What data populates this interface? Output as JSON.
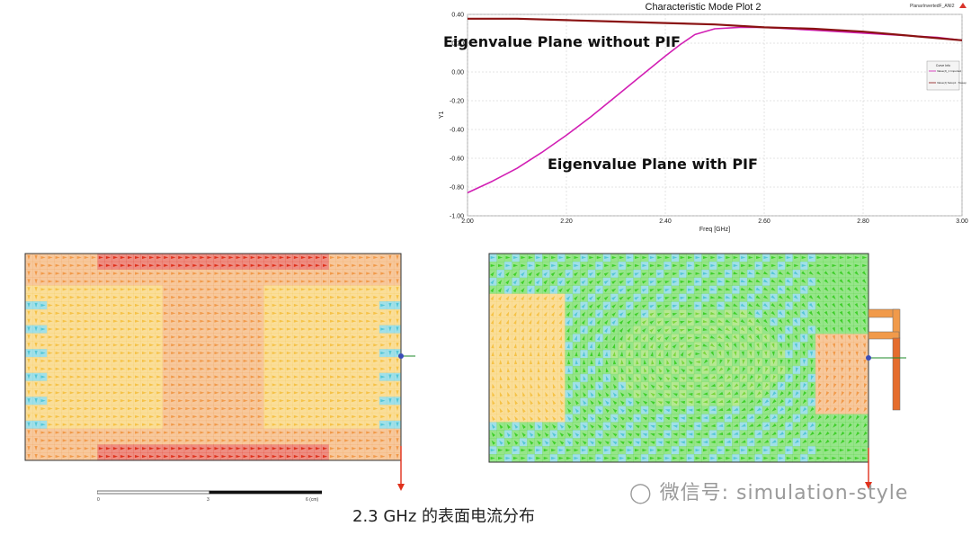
{
  "chart_data": {
    "type": "line",
    "title": "Characteristic Mode Plot 2",
    "corner_label": "PlanarInvertedF_ANI2",
    "xlabel": "Freq [GHz]",
    "ylabel": "Y1",
    "xlim": [
      2.0,
      3.0
    ],
    "ylim": [
      -1.0,
      0.4
    ],
    "x_ticks": [
      "2.00",
      "2.20",
      "2.40",
      "2.60",
      "2.80",
      "3.00"
    ],
    "y_ticks": [
      "0.40",
      "0.20",
      "0.00",
      "-0.20",
      "-0.40",
      "-0.60",
      "-0.80",
      "-1.00"
    ],
    "grid": true,
    "legend": {
      "placement": "right",
      "title": "Curve Info",
      "entries": [
        "Value(J)_1\nImported",
        "Value(J)\nSetup1 : Sweep"
      ]
    },
    "series": [
      {
        "color": "#d21fb4",
        "x": [
          2.0,
          2.05,
          2.1,
          2.15,
          2.2,
          2.25,
          2.3,
          2.35,
          2.4,
          2.43,
          2.46,
          2.5,
          2.55,
          2.6,
          2.65,
          2.7,
          2.75,
          2.8,
          2.85,
          2.9,
          2.95,
          3.0
        ],
        "y": [
          -0.84,
          -0.76,
          -0.67,
          -0.56,
          -0.44,
          -0.31,
          -0.17,
          -0.03,
          0.11,
          0.19,
          0.26,
          0.3,
          0.31,
          0.31,
          0.3,
          0.29,
          0.28,
          0.27,
          0.26,
          0.25,
          0.24,
          0.22
        ]
      },
      {
        "color": "#8a1212",
        "x": [
          2.0,
          2.1,
          2.2,
          2.3,
          2.4,
          2.5,
          2.6,
          2.7,
          2.8,
          2.9,
          3.0
        ],
        "y": [
          0.37,
          0.37,
          0.36,
          0.35,
          0.34,
          0.33,
          0.31,
          0.3,
          0.28,
          0.25,
          0.22
        ]
      }
    ]
  },
  "annotations": {
    "without_pif": "Eigenvalue Plane without PIF",
    "with_pif": "Eigenvalue Plane with PIF"
  },
  "scale_bar": {
    "ticks": [
      "0",
      "3",
      "6 (cm)"
    ]
  },
  "caption": "2.3 GHz 的表面电流分布",
  "watermark": "微信号: simulation-style",
  "colors": {
    "current_high": "#e0311c",
    "current_mid": "#f19a4a",
    "current_low": "#f6c246",
    "current_green": "#3fcf2a",
    "current_cyan": "#54c6d6"
  }
}
